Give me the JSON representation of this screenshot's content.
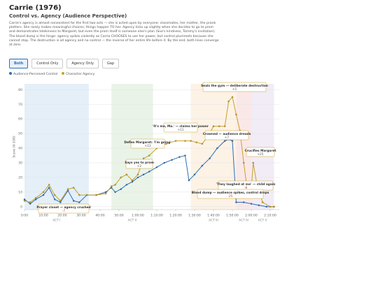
{
  "header": {
    "title": "Carrie (1976)",
    "subtitle": "Control vs. Agency (Audience Perspective)",
    "description": "Carrie's agency is almost nonexistent for the first two acts — she is acted upon by everyone: classmates, her mother, the prank plotters. She rarely makes meaningful choices; things happen TO her. Agency ticks up slightly when she decides to go to prom and demonstrates telekinesis to Margaret, but even the prom itself is someone else's plan (Sue's kindness, Tommy's invitation). The blood dump is the hinge: agency spikes violently as Carrie CHOOSES to use her power, but control plummets because she cannot stop. The destruction is all agency and no control — the inverse of her entire life before it. By the end, both lines converge at zero."
  },
  "buttons": [
    "Both",
    "Control Only",
    "Agency Only",
    "Gap"
  ],
  "chart_data": {
    "type": "line",
    "y_label": "Score (0-100)",
    "ylim": [
      -2,
      84
    ],
    "yticks": [
      0,
      10,
      20,
      30,
      40,
      50,
      60,
      70,
      80
    ],
    "xlim": [
      0,
      135
    ],
    "xticks": [
      {
        "value": 0,
        "label": "0:00"
      },
      {
        "value": 10,
        "label": "10:00"
      },
      {
        "value": 20,
        "label": "20:00"
      },
      {
        "value": 30,
        "label": "30:00"
      },
      {
        "value": 40,
        "label": "40:00"
      },
      {
        "value": 50,
        "label": "50:00"
      },
      {
        "value": 60,
        "label": "1:00:00"
      },
      {
        "value": 70,
        "label": "1:10:00"
      },
      {
        "value": 80,
        "label": "1:20:00"
      },
      {
        "value": 90,
        "label": "1:30:00"
      },
      {
        "value": 100,
        "label": "1:40:00"
      },
      {
        "value": 110,
        "label": "1:50:00"
      },
      {
        "value": 120,
        "label": "2:00:00"
      },
      {
        "value": 130,
        "label": "2:10:00"
      }
    ],
    "grid": true,
    "acts": [
      {
        "name": "ACT I",
        "start": 0,
        "end": 34,
        "color": "#dbe9f6"
      },
      {
        "name": "ACT II",
        "start": 46,
        "end": 68,
        "color": "#e3efe0"
      },
      {
        "name": "ACT III",
        "start": 88,
        "end": 112,
        "color": "#fbeedd"
      },
      {
        "name": "ACT IV",
        "start": 112,
        "end": 120,
        "color": "#f8e0e0"
      },
      {
        "name": "ACT V",
        "start": 120,
        "end": 132,
        "color": "#ece6f3"
      }
    ],
    "series": [
      {
        "name": "Audience-Perceived Control",
        "color": "#2c6fb7",
        "x": [
          0,
          3,
          6,
          10,
          13,
          16,
          19,
          23,
          26,
          29,
          33,
          38,
          43,
          46,
          48,
          51,
          54,
          57,
          60,
          63,
          66,
          70,
          74,
          78,
          82,
          85,
          87,
          90,
          94,
          98,
          102,
          106,
          108,
          110,
          112,
          116,
          120,
          124,
          128,
          132
        ],
        "values": [
          5,
          2,
          5,
          8,
          13,
          5,
          3,
          11,
          4,
          3,
          8,
          8,
          10,
          13,
          10,
          12,
          15,
          17,
          20,
          22,
          24,
          27,
          30,
          32,
          34,
          35,
          18,
          22,
          28,
          33,
          40,
          45,
          46,
          45,
          3,
          3,
          2,
          1,
          0,
          0
        ]
      },
      {
        "name": "Character Agency",
        "color": "#c9a227",
        "x": [
          0,
          3,
          6,
          10,
          13,
          16,
          19,
          23,
          26,
          29,
          33,
          38,
          43,
          46,
          48,
          51,
          54,
          57,
          60,
          63,
          66,
          70,
          75,
          80,
          85,
          88,
          91,
          94,
          97,
          100,
          103,
          106,
          108,
          110,
          112,
          114,
          116,
          118,
          120,
          121,
          123,
          126,
          130,
          132
        ],
        "values": [
          4,
          3,
          6,
          10,
          15,
          8,
          4,
          12,
          13,
          8,
          8,
          8,
          9,
          14,
          15,
          20,
          22,
          18,
          22,
          33,
          35,
          40,
          43,
          45,
          45,
          45,
          44,
          43,
          48,
          55,
          55,
          55,
          72,
          75,
          63,
          52,
          30,
          10,
          12,
          30,
          15,
          3,
          0,
          0
        ]
      }
    ],
    "annotations": [
      {
        "text": "Seals the gym — deliberate destruction",
        "delta": "+5"
      },
      {
        "text": "'It's me, Ma.' — claims her power",
        "delta": "+11"
      },
      {
        "text": "Crowned — audience dreads",
        "delta": "+7"
      },
      {
        "text": "Defies Margaret: 'I'm going'",
        "delta": "+13"
      },
      {
        "text": "Crucifies Margaret",
        "delta": "+25"
      },
      {
        "text": "Says yes to prom",
        "delta": "+2"
      },
      {
        "text": "'They laughed at me' — child again",
        "delta": "-8"
      },
      {
        "text": "Blood dump — audience spikes, control drops",
        "delta": "-25"
      },
      {
        "text": "Prayer closet — agency crushed",
        "delta": "-7"
      }
    ]
  }
}
